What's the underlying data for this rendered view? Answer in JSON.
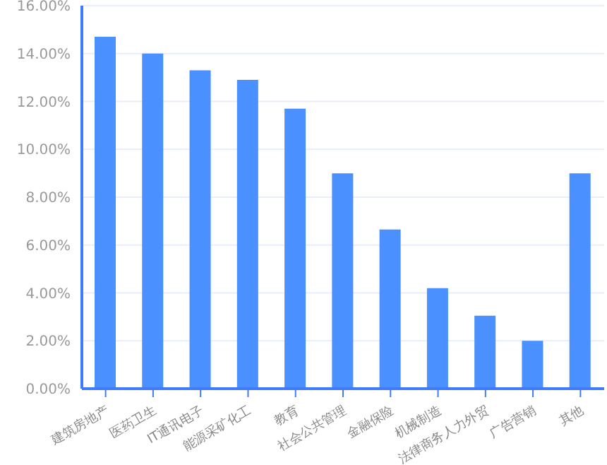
{
  "chart_data": {
    "type": "bar",
    "categories": [
      "建筑房地产",
      "医药卫生",
      "IT通讯电子",
      "能源采矿化工",
      "教育",
      "社会公共管理",
      "金融保险",
      "机械制造",
      "法律商务人力外贸",
      "广告营销",
      "其他"
    ],
    "values": [
      14.7,
      14.0,
      13.3,
      12.9,
      11.7,
      9.0,
      6.65,
      4.2,
      3.05,
      2.0,
      9.0
    ],
    "color": "#4a90ff",
    "ylim": [
      0,
      16
    ],
    "yticks": [
      {
        "value": 0,
        "label": "0.00%"
      },
      {
        "value": 2,
        "label": "2.00%"
      },
      {
        "value": 4,
        "label": "4.00%"
      },
      {
        "value": 6,
        "label": "6.00%"
      },
      {
        "value": 8,
        "label": "8.00%"
      },
      {
        "value": 10,
        "label": "10.00%"
      },
      {
        "value": 12,
        "label": "12.00%"
      },
      {
        "value": 14,
        "label": "14.00%"
      },
      {
        "value": 16,
        "label": "16.00%"
      }
    ],
    "grid": "y"
  }
}
